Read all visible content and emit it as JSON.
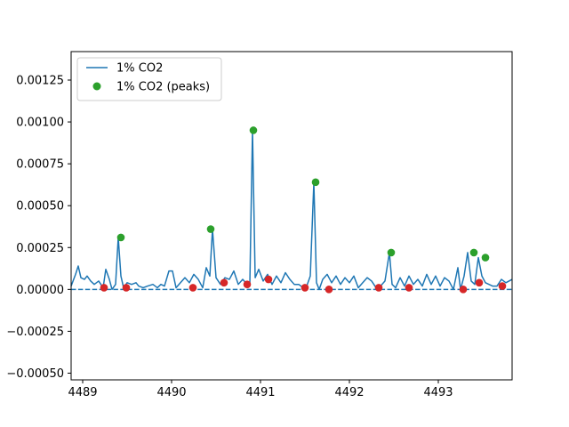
{
  "chart_data": {
    "type": "line",
    "title": "",
    "xlabel": "",
    "ylabel": "",
    "xlim": [
      4488.87,
      4493.83
    ],
    "ylim": [
      -0.00054,
      0.00142
    ],
    "xticks": [
      4489,
      4490,
      4491,
      4492,
      4493
    ],
    "xtick_labels": [
      "4489",
      "4490",
      "4491",
      "4492",
      "4493"
    ],
    "yticks": [
      -0.0005,
      -0.00025,
      0.0,
      0.00025,
      0.0005,
      0.00075,
      0.001,
      0.00125
    ],
    "ytick_labels": [
      "−0.00050",
      "−0.00025",
      "0.00000",
      "0.00025",
      "0.00050",
      "0.00075",
      "0.00100",
      "0.00125"
    ],
    "legend_position": "top-left",
    "grid": false,
    "baseline": 0.0,
    "colors": {
      "line": "#1f77b4",
      "peaks": "#2ca02c",
      "minima": "#d62728",
      "baseline": "#1f77b4"
    },
    "series": [
      {
        "name": "1% CO2",
        "kind": "line",
        "x": [
          4488.87,
          4488.92,
          4488.95,
          4488.98,
          4489.02,
          4489.05,
          4489.09,
          4489.13,
          4489.18,
          4489.23,
          4489.26,
          4489.3,
          4489.33,
          4489.37,
          4489.4,
          4489.43,
          4489.46,
          4489.5,
          4489.55,
          4489.6,
          4489.63,
          4489.68,
          4489.73,
          4489.79,
          4489.84,
          4489.88,
          4489.92,
          4489.97,
          4490.01,
          4490.05,
          4490.1,
          4490.15,
          4490.2,
          4490.25,
          4490.3,
          4490.35,
          4490.39,
          4490.43,
          4490.46,
          4490.5,
          4490.55,
          4490.6,
          4490.65,
          4490.7,
          4490.75,
          4490.8,
          4490.85,
          4490.88,
          4490.91,
          4490.94,
          4490.98,
          4491.03,
          4491.08,
          4491.13,
          4491.18,
          4491.23,
          4491.28,
          4491.33,
          4491.38,
          4491.43,
          4491.48,
          4491.52,
          4491.56,
          4491.6,
          4491.63,
          4491.66,
          4491.7,
          4491.75,
          4491.8,
          4491.85,
          4491.9,
          4491.95,
          4492.0,
          4492.05,
          4492.1,
          4492.15,
          4492.2,
          4492.25,
          4492.3,
          4492.35,
          4492.4,
          4492.45,
          4492.48,
          4492.52,
          4492.57,
          4492.62,
          4492.67,
          4492.72,
          4492.77,
          4492.82,
          4492.87,
          4492.92,
          4492.97,
          4493.02,
          4493.07,
          4493.12,
          4493.17,
          4493.22,
          4493.25,
          4493.29,
          4493.33,
          4493.37,
          4493.41,
          4493.45,
          4493.49,
          4493.53,
          4493.57,
          4493.61,
          4493.66,
          4493.71,
          4493.76,
          4493.83
        ],
        "values": [
          2e-05,
          9e-05,
          0.00014,
          7e-05,
          6e-05,
          8e-05,
          5e-05,
          3e-05,
          5e-05,
          1e-05,
          0.00012,
          6e-05,
          0.0,
          3e-05,
          0.00031,
          8e-05,
          1e-05,
          4e-05,
          3e-05,
          4e-05,
          2e-05,
          1e-05,
          2e-05,
          3e-05,
          1e-05,
          3e-05,
          2e-05,
          0.00011,
          0.00011,
          1e-05,
          4e-05,
          7e-05,
          4e-05,
          9e-05,
          6e-05,
          1e-05,
          0.00013,
          8e-05,
          0.00036,
          7e-05,
          3e-05,
          7e-05,
          6e-05,
          0.00011,
          3e-05,
          6e-05,
          3e-05,
          3e-05,
          0.00095,
          7e-05,
          0.00012,
          5e-05,
          9e-05,
          3e-05,
          8e-05,
          4e-05,
          0.0001,
          6e-05,
          3e-05,
          3e-05,
          1e-05,
          2e-05,
          8e-05,
          0.00064,
          4e-05,
          0.0,
          6e-05,
          9e-05,
          4e-05,
          8e-05,
          3e-05,
          7e-05,
          4e-05,
          8e-05,
          1e-05,
          4e-05,
          7e-05,
          5e-05,
          1e-05,
          2e-05,
          5e-05,
          0.00022,
          3e-05,
          1e-05,
          7e-05,
          2e-05,
          8e-05,
          3e-05,
          6e-05,
          2e-05,
          9e-05,
          3e-05,
          8e-05,
          2e-05,
          7e-05,
          5e-05,
          0.0,
          0.00013,
          0.0,
          8e-05,
          0.00022,
          5e-05,
          3e-05,
          0.00019,
          8e-05,
          4e-05,
          3e-05,
          2e-05,
          2e-05,
          6e-05,
          4e-05,
          6e-05
        ]
      },
      {
        "name": "1% CO2 (peaks)",
        "kind": "scatter",
        "x": [
          4489.43,
          4490.44,
          4490.92,
          4491.62,
          4492.47,
          4493.4,
          4493.53
        ],
        "values": [
          0.00031,
          0.00036,
          0.00095,
          0.00064,
          0.00022,
          0.00022,
          0.00019
        ]
      },
      {
        "name": "",
        "kind": "scatter",
        "x": [
          4489.24,
          4489.49,
          4490.24,
          4490.59,
          4490.85,
          4491.09,
          4491.5,
          4491.77,
          4492.33,
          4492.67,
          4493.28,
          4493.46,
          4493.72
        ],
        "values": [
          1e-05,
          1e-05,
          1e-05,
          4e-05,
          3e-05,
          6e-05,
          1e-05,
          0.0,
          1e-05,
          1e-05,
          0.0,
          4e-05,
          2e-05
        ]
      }
    ]
  }
}
